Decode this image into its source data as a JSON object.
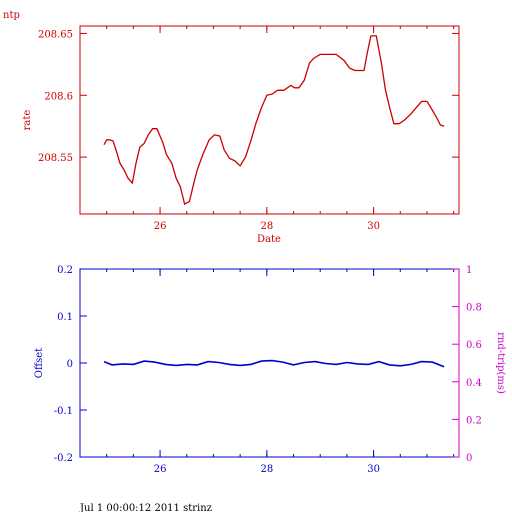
{
  "page": {
    "footer": "Jul  1 00:00:12 2011 strinz"
  },
  "colors": {
    "top": "#cc0000",
    "offset": "#0000cc",
    "rtt": "#cc00cc",
    "footer": "#000000"
  },
  "chart_data": [
    {
      "type": "line",
      "corner_label": "ntp",
      "title": "",
      "xlabel": "Date",
      "ylabel": "rate",
      "xlim": [
        24.5,
        31.6
      ],
      "ylim": [
        208.504,
        208.656
      ],
      "xticks": [
        "26",
        "28",
        "30"
      ],
      "xtick_values": [
        26,
        28,
        30
      ],
      "yticks": [
        "208.55",
        "208.6",
        "208.65"
      ],
      "ytick_values": [
        208.55,
        208.6,
        208.65
      ],
      "series": [
        {
          "x": [
            24.95,
            25.0,
            25.05,
            25.12,
            25.18,
            25.25,
            25.32,
            25.4,
            25.48,
            25.55,
            25.62,
            25.7,
            25.78,
            25.86,
            25.94,
            26.05,
            26.12,
            26.22,
            26.3,
            26.38,
            26.46,
            26.55,
            26.62,
            26.7,
            26.8,
            26.92,
            27.02,
            27.12,
            27.2,
            27.3,
            27.4,
            27.5,
            27.6,
            27.7,
            27.8,
            27.9,
            28.0,
            28.1,
            28.2,
            28.32,
            28.45,
            28.52,
            28.6,
            28.7,
            28.8,
            28.88,
            29.0,
            29.15,
            29.3,
            29.45,
            29.55,
            29.65,
            29.75,
            29.82,
            29.88,
            29.95,
            30.05,
            30.15,
            30.22,
            30.3,
            30.38,
            30.48,
            30.58,
            30.7,
            30.8,
            30.9,
            31.0,
            31.1,
            31.18,
            31.25,
            31.32
          ],
          "y": [
            208.56,
            208.564,
            208.564,
            208.563,
            208.555,
            208.545,
            208.54,
            208.533,
            208.529,
            208.545,
            208.558,
            208.561,
            208.568,
            208.573,
            208.573,
            208.562,
            208.552,
            208.545,
            208.533,
            208.526,
            208.512,
            208.514,
            208.527,
            208.54,
            208.552,
            208.564,
            208.568,
            208.567,
            208.556,
            208.549,
            208.547,
            208.543,
            208.55,
            208.563,
            208.578,
            208.59,
            208.6,
            208.601,
            208.604,
            208.604,
            208.608,
            208.606,
            208.606,
            208.612,
            208.626,
            208.63,
            208.633,
            208.633,
            208.633,
            208.628,
            208.622,
            208.62,
            208.62,
            208.62,
            208.634,
            208.648,
            208.648,
            208.625,
            208.605,
            208.59,
            208.577,
            208.577,
            208.58,
            208.585,
            208.59,
            208.595,
            208.595,
            208.588,
            208.582,
            208.576,
            208.575
          ]
        }
      ]
    },
    {
      "type": "line",
      "title": "",
      "xlabel": "",
      "ylabel": "Offset",
      "ylabel_right": "rnd-trip(ms)",
      "xlim": [
        24.5,
        31.6
      ],
      "ylim": [
        -0.2,
        0.2
      ],
      "ylim_right": [
        0,
        1
      ],
      "xticks": [
        "26",
        "28",
        "30"
      ],
      "xtick_values": [
        26,
        28,
        30
      ],
      "yticks": [
        "0.2",
        "0.1",
        "0",
        "-0.1",
        "-0.2"
      ],
      "ytick_values": [
        0.2,
        0.1,
        0,
        -0.1,
        -0.2
      ],
      "yticks_right": [
        "1",
        "0.8",
        "0.6",
        "0.4",
        "0.2",
        "0"
      ],
      "ytick_values_right": [
        1,
        0.8,
        0.6,
        0.4,
        0.2,
        0
      ],
      "series": [
        {
          "x": [
            24.95,
            25.1,
            25.3,
            25.5,
            25.7,
            25.9,
            26.1,
            26.3,
            26.5,
            26.7,
            26.9,
            27.1,
            27.3,
            27.5,
            27.7,
            27.9,
            28.1,
            28.3,
            28.5,
            28.7,
            28.9,
            29.1,
            29.3,
            29.5,
            29.7,
            29.9,
            30.1,
            30.3,
            30.5,
            30.7,
            30.9,
            31.1,
            31.32
          ],
          "y": [
            0.003,
            -0.004,
            -0.002,
            -0.003,
            0.004,
            0.002,
            -0.003,
            -0.005,
            -0.003,
            -0.004,
            0.003,
            0.001,
            -0.003,
            -0.005,
            -0.003,
            0.004,
            0.005,
            0.002,
            -0.004,
            0.001,
            0.003,
            -0.001,
            -0.003,
            0.001,
            -0.002,
            -0.003,
            0.003,
            -0.004,
            -0.006,
            -0.003,
            0.003,
            0.002,
            -0.008
          ]
        }
      ]
    }
  ]
}
